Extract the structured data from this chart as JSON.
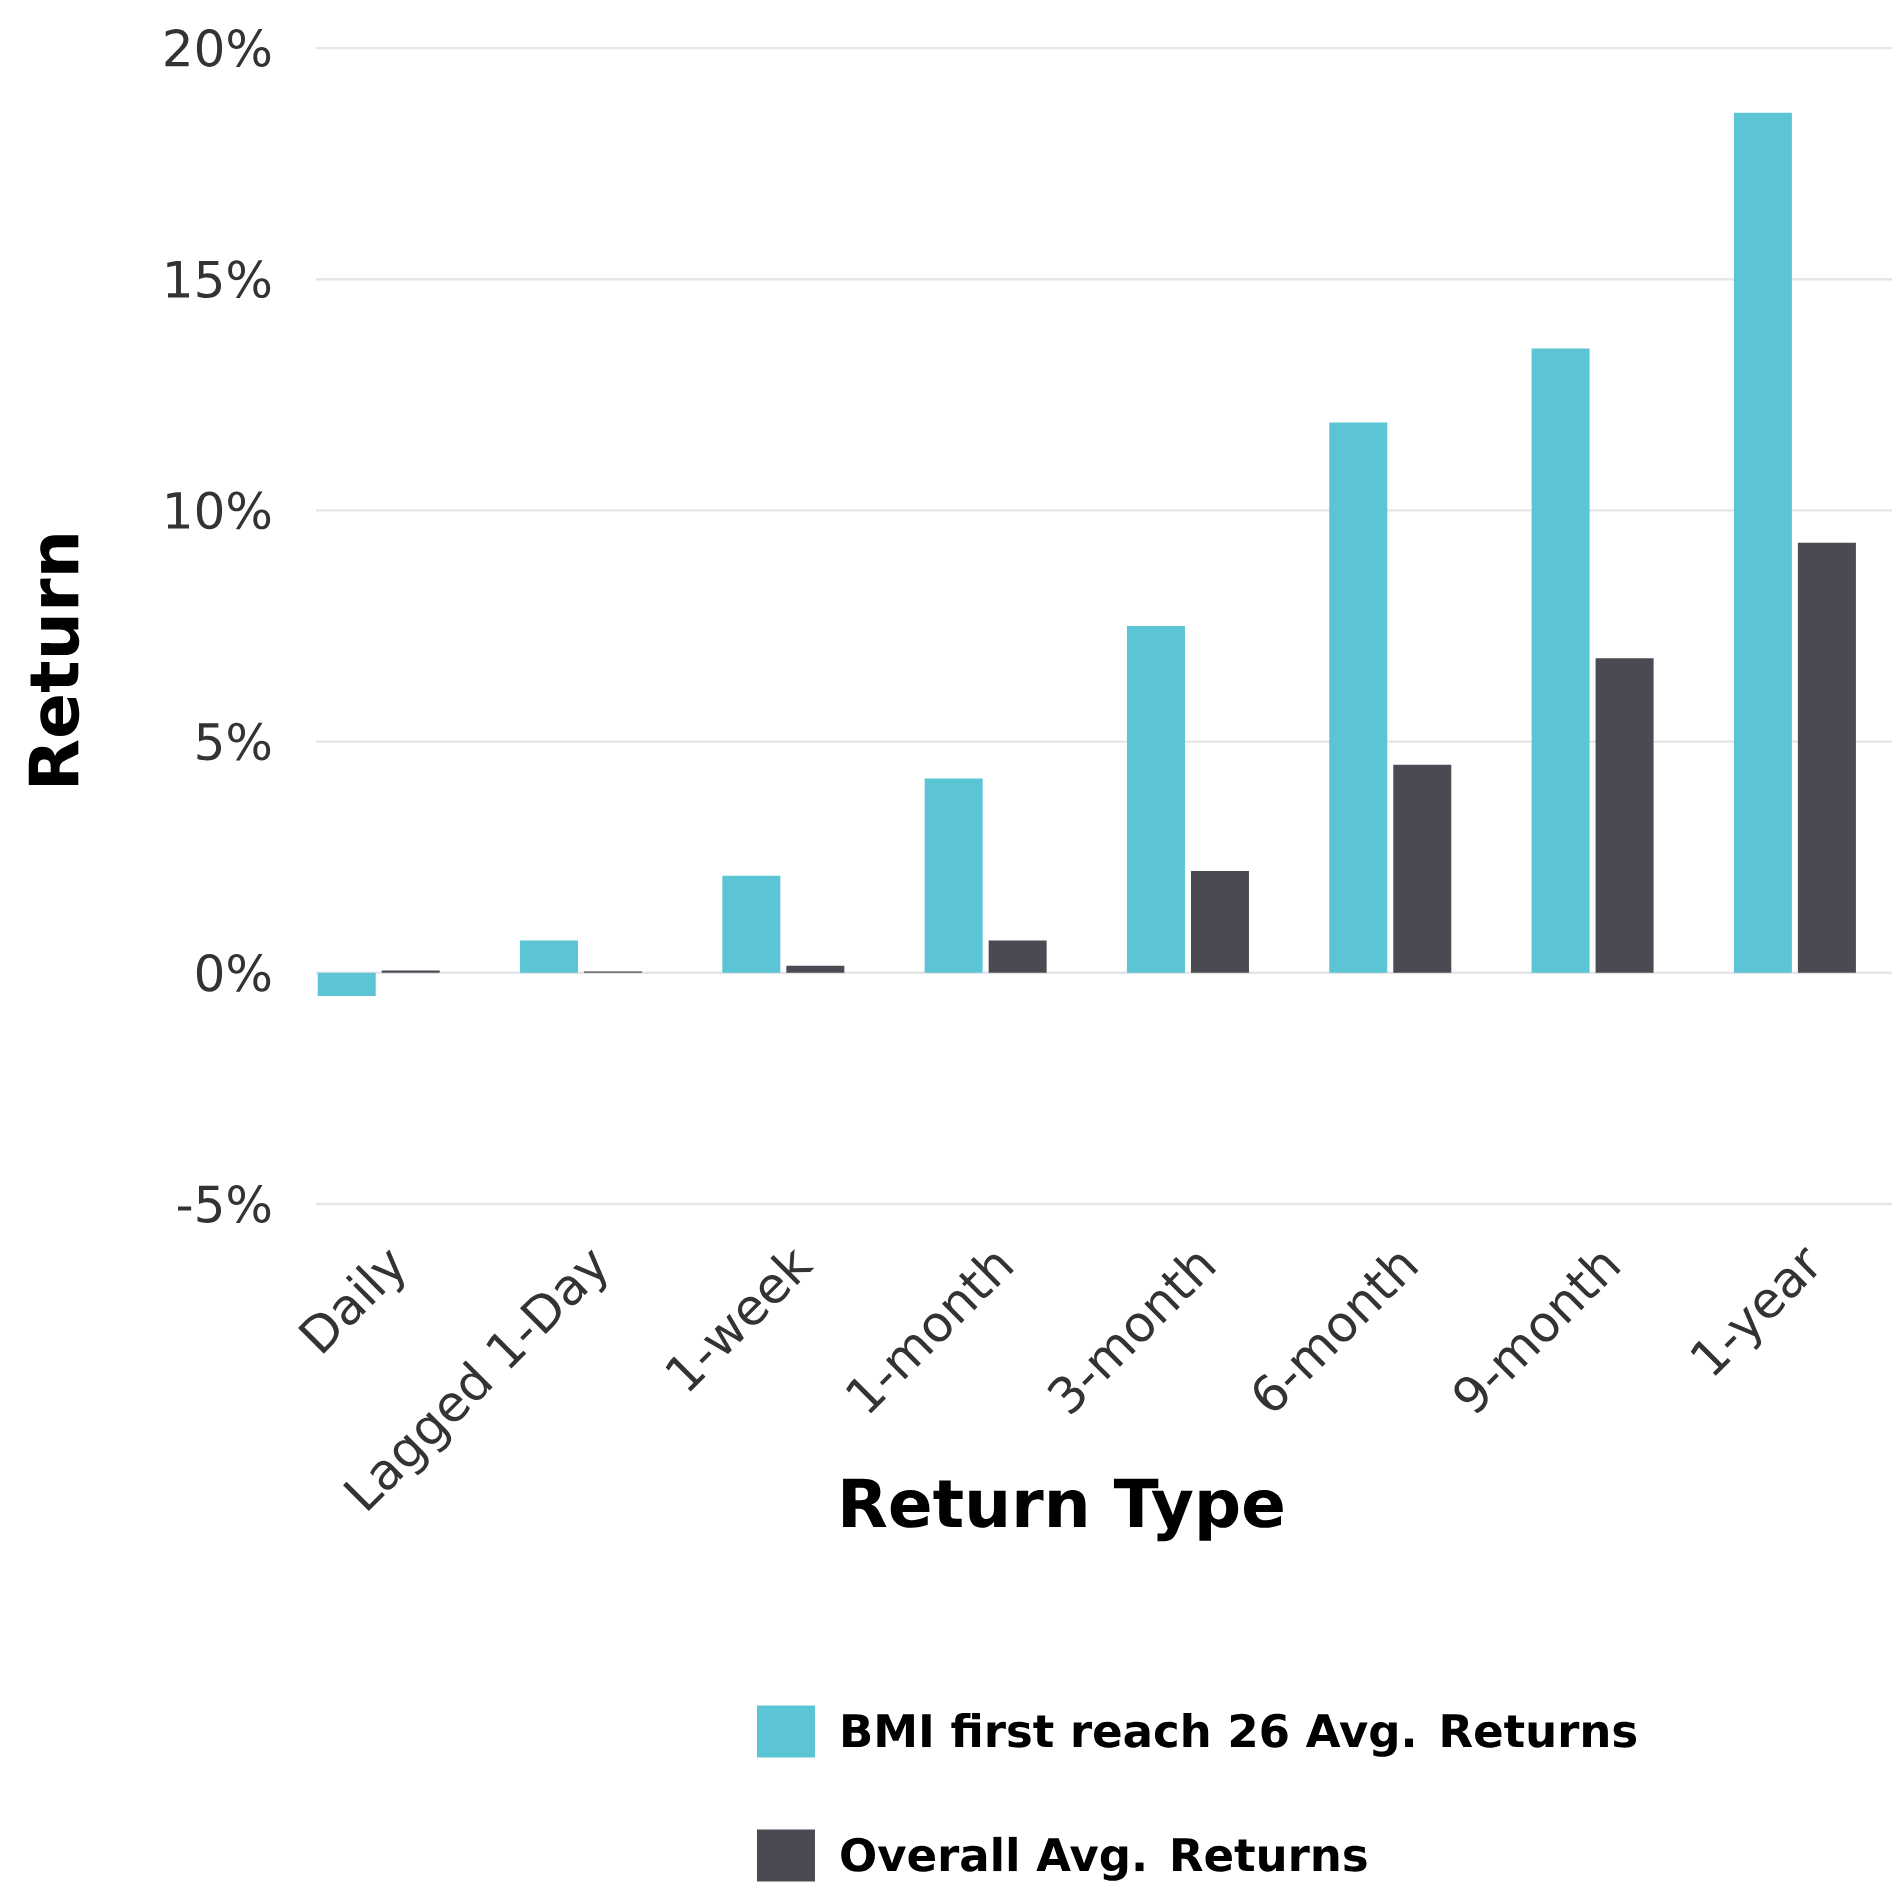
{
  "chart_data": {
    "type": "bar",
    "xlabel": "Return Type",
    "ylabel": "Return",
    "categories": [
      "Daily",
      "Lagged 1-Day",
      "1-week",
      "1-month",
      "3-month",
      "6-month",
      "9-month",
      "1-year"
    ],
    "series": [
      {
        "name": "BMI first reach 26 Avg. Returns",
        "color": "#5bc5d6",
        "values": [
          -0.5,
          0.7,
          2.1,
          4.2,
          7.5,
          11.9,
          13.5,
          18.6
        ]
      },
      {
        "name": "Overall Avg. Returns",
        "color": "#4a4a52",
        "values": [
          0.05,
          0.03,
          0.15,
          0.7,
          2.2,
          4.5,
          6.8,
          9.3
        ]
      }
    ],
    "ylim": [
      -5,
      20
    ],
    "yticks": [
      {
        "value": -5,
        "label": "-5%"
      },
      {
        "value": 0,
        "label": "0%"
      },
      {
        "value": 5,
        "label": "5%"
      },
      {
        "value": 10,
        "label": "10%"
      },
      {
        "value": 15,
        "label": "15%"
      },
      {
        "value": 20,
        "label": "20%"
      }
    ],
    "grid": "y",
    "legend": "bottom"
  }
}
